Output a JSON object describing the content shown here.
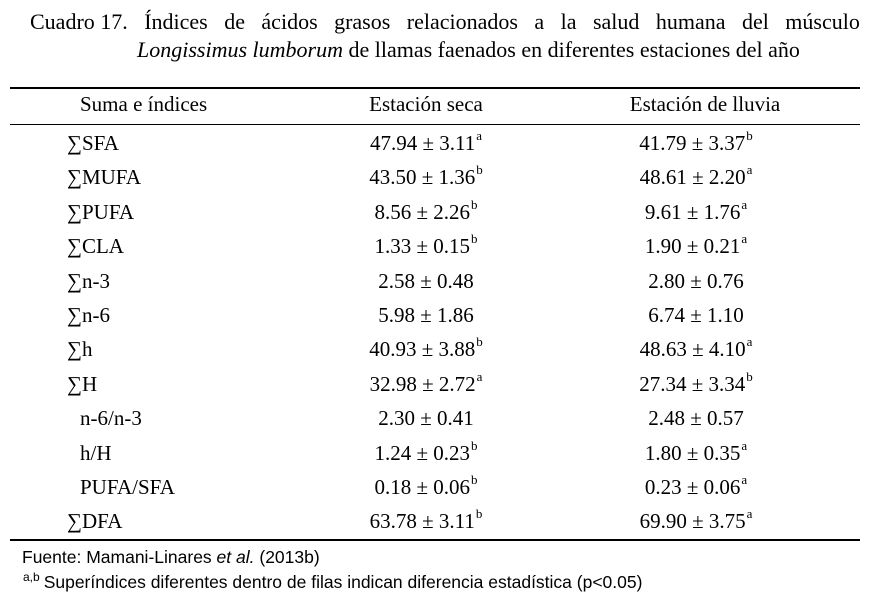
{
  "caption": {
    "line1_words": [
      "Cuadro 17.",
      "Índices",
      "de",
      "ácidos",
      "grasos",
      "relacionados",
      "a",
      "la",
      "salud",
      "humana",
      "del",
      "músculo"
    ],
    "line2_italic": "Longissimus lumborum",
    "line2_rest": " de llamas faenados en diferentes estaciones del año"
  },
  "table": {
    "headers": [
      "Suma e índices",
      "Estación seca",
      "Estación de lluvia"
    ],
    "rows": [
      {
        "index": "∑SFA",
        "seca": "47.94 ± 3.11",
        "seca_sup": "a",
        "lluvia": "41.79 ± 3.37",
        "lluvia_sup": "b"
      },
      {
        "index": "∑MUFA",
        "seca": "43.50 ± 1.36",
        "seca_sup": "b",
        "lluvia": "48.61 ± 2.20",
        "lluvia_sup": "a"
      },
      {
        "index": "∑PUFA",
        "seca": "8.56 ± 2.26",
        "seca_sup": "b",
        "lluvia": "9.61 ± 1.76",
        "lluvia_sup": "a"
      },
      {
        "index": "∑CLA",
        "seca": "1.33 ± 0.15",
        "seca_sup": "b",
        "lluvia": "1.90 ± 0.21",
        "lluvia_sup": "a"
      },
      {
        "index": "∑n-3",
        "seca": "2.58 ± 0.48",
        "seca_sup": "",
        "lluvia": "2.80 ± 0.76",
        "lluvia_sup": ""
      },
      {
        "index": "∑n-6",
        "seca": "5.98 ± 1.86",
        "seca_sup": "",
        "lluvia": "6.74 ± 1.10",
        "lluvia_sup": ""
      },
      {
        "index": "∑h",
        "seca": "40.93 ± 3.88",
        "seca_sup": "b",
        "lluvia": "48.63 ± 4.10",
        "lluvia_sup": "a"
      },
      {
        "index": "∑H",
        "seca": "32.98 ± 2.72",
        "seca_sup": "a",
        "lluvia": "27.34 ± 3.34",
        "lluvia_sup": "b"
      },
      {
        "index": "n-6/n-3",
        "seca": "2.30 ± 0.41",
        "seca_sup": "",
        "lluvia": "2.48 ± 0.57",
        "lluvia_sup": ""
      },
      {
        "index": "h/H",
        "seca": "1.24 ± 0.23",
        "seca_sup": "b",
        "lluvia": "1.80 ± 0.35",
        "lluvia_sup": "a"
      },
      {
        "index": "PUFA/SFA",
        "seca": "0.18 ± 0.06",
        "seca_sup": "b",
        "lluvia": "0.23 ± 0.06",
        "lluvia_sup": "a"
      },
      {
        "index": "∑DFA",
        "seca": "63.78 ± 3.11",
        "seca_sup": "b",
        "lluvia": "69.90 ± 3.75",
        "lluvia_sup": "a"
      }
    ]
  },
  "footnotes": {
    "source_prefix": "Fuente: Mamani-Linares ",
    "source_italic": "et al.",
    "source_suffix": " (2013b)",
    "note_sup": "a,b",
    "note_text": "Superíndices diferentes dentro de filas indican diferencia estadística (p<0.05)"
  }
}
